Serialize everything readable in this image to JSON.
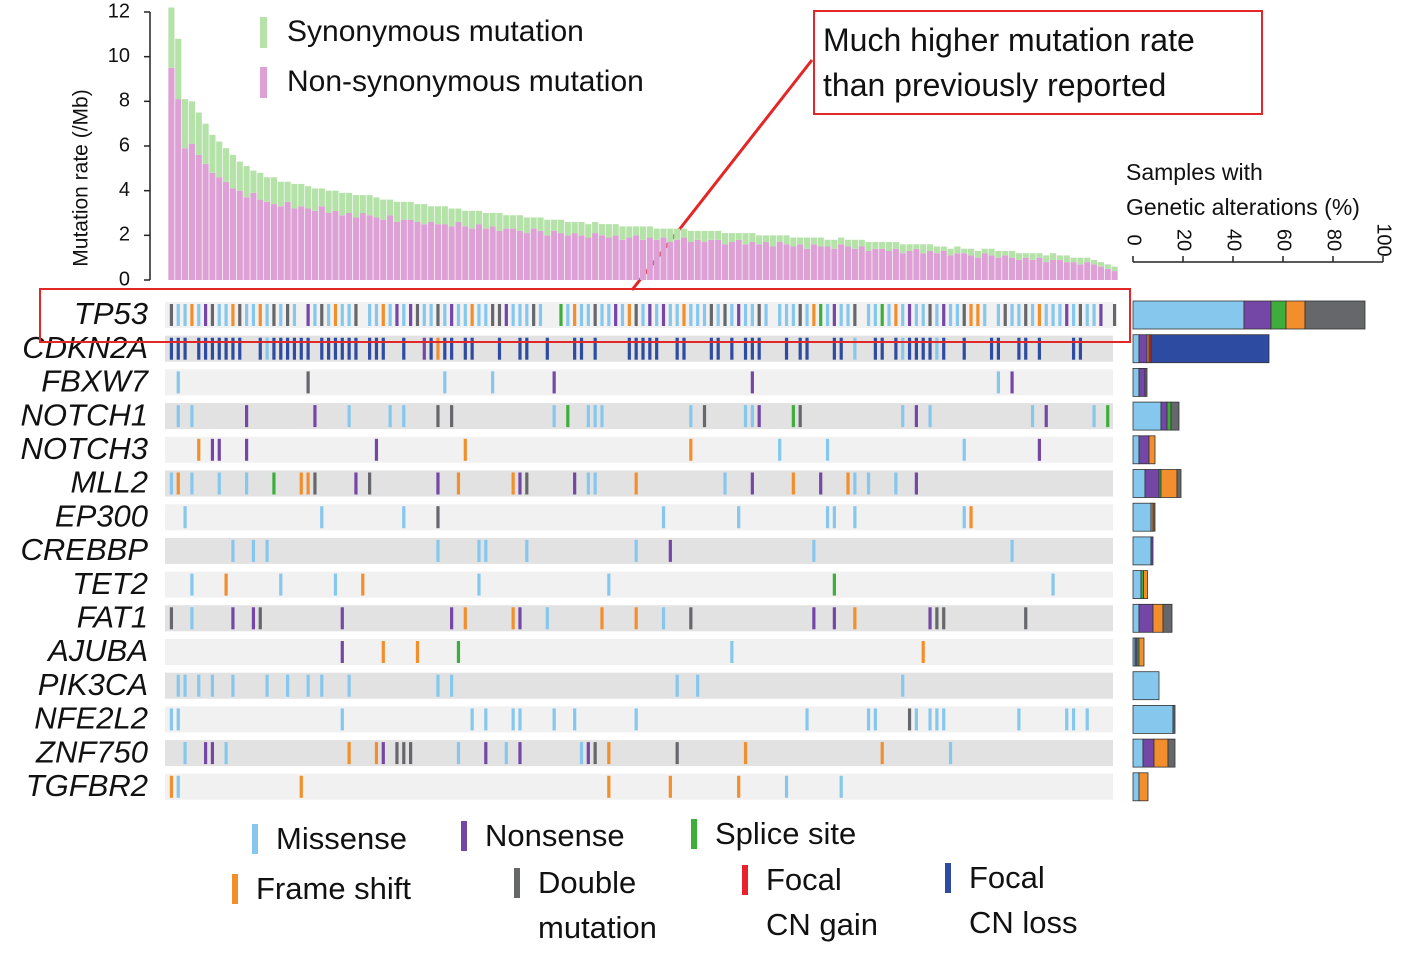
{
  "chart_data": [
    {
      "type": "bar",
      "ylabel": "Mutation rate   (/Mb)",
      "ylim": [
        0,
        12
      ],
      "yticks": [
        0,
        2,
        4,
        6,
        8,
        10,
        12
      ],
      "annotation": "Much higher mutation rate\nthan previously reported",
      "series": [
        {
          "name": "Synonymous mutation",
          "color": "#b5e2a8",
          "values": [
            2.7,
            2.7,
            2.2,
            1.9,
            1.9,
            1.8,
            1.7,
            1.6,
            1.5,
            1.5,
            1.3,
            1.4,
            1.0,
            1.2,
            1.1,
            1.2,
            1.1,
            0.9,
            1.1,
            1.0,
            1.0,
            1.0,
            0.8,
            1.0,
            0.9,
            1.0,
            0.9,
            1.0,
            0.8,
            0.9,
            0.9,
            0.9,
            0.7,
            0.9,
            0.8,
            0.8,
            0.8,
            0.9,
            0.7,
            0.8,
            0.8,
            0.8,
            0.6,
            0.7,
            0.8,
            0.6,
            0.7,
            0.6,
            0.8,
            0.6,
            0.6,
            0.7,
            0.7,
            0.5,
            0.6,
            0.7,
            0.5,
            0.6,
            0.6,
            0.5,
            0.6,
            0.6,
            0.5,
            0.5,
            0.6,
            0.5,
            0.6,
            0.5,
            0.4,
            0.6,
            0.5,
            0.5,
            0.4,
            0.6,
            0.5,
            0.4,
            0.5,
            0.4,
            0.5,
            0.4,
            0.4,
            0.5,
            0.4,
            0.3,
            0.5,
            0.4,
            0.4,
            0.3,
            0.5,
            0.3,
            0.4,
            0.4,
            0.3,
            0.5,
            0.3,
            0.4,
            0.3,
            0.4,
            0.3,
            0.3,
            0.4,
            0.3,
            0.4,
            0.3,
            0.3,
            0.4,
            0.3,
            0.4,
            0.3,
            0.2,
            0.4,
            0.3,
            0.3,
            0.2,
            0.3,
            0.3,
            0.2,
            0.3,
            0.3,
            0.2,
            0.3,
            0.3,
            0.2,
            0.3,
            0.3,
            0.2,
            0.3,
            0.2,
            0.3,
            0.3,
            0.2,
            0.3,
            0.2,
            0.3,
            0.2,
            0.2,
            0.2,
            0.2,
            0.2
          ]
        },
        {
          "name": "Non-synonymous mutation",
          "color": "#dda1d6",
          "values": [
            9.5,
            8.1,
            5.9,
            6.1,
            5.6,
            5.2,
            4.8,
            4.6,
            4.4,
            4.1,
            4.0,
            3.7,
            3.9,
            3.6,
            3.5,
            3.4,
            3.3,
            3.5,
            3.2,
            3.3,
            3.2,
            3.1,
            3.3,
            3.0,
            3.1,
            2.9,
            3.0,
            2.8,
            3.0,
            2.9,
            2.8,
            2.7,
            2.9,
            2.6,
            2.7,
            2.7,
            2.6,
            2.5,
            2.6,
            2.5,
            2.5,
            2.4,
            2.6,
            2.4,
            2.3,
            2.5,
            2.3,
            2.4,
            2.2,
            2.3,
            2.3,
            2.2,
            2.1,
            2.3,
            2.2,
            2.0,
            2.2,
            2.1,
            2.0,
            2.1,
            2.0,
            1.9,
            2.1,
            2.0,
            1.9,
            2.0,
            1.8,
            1.9,
            2.0,
            1.8,
            1.9,
            1.8,
            1.9,
            1.7,
            1.8,
            1.9,
            1.7,
            1.8,
            1.7,
            1.8,
            1.8,
            1.6,
            1.7,
            1.8,
            1.6,
            1.7,
            1.6,
            1.7,
            1.5,
            1.7,
            1.6,
            1.5,
            1.6,
            1.4,
            1.6,
            1.5,
            1.5,
            1.4,
            1.6,
            1.5,
            1.4,
            1.5,
            1.3,
            1.4,
            1.4,
            1.3,
            1.4,
            1.2,
            1.3,
            1.4,
            1.2,
            1.3,
            1.2,
            1.3,
            1.1,
            1.2,
            1.2,
            1.1,
            1.0,
            1.2,
            1.1,
            1.0,
            1.1,
            1.0,
            0.9,
            1.0,
            0.9,
            1.0,
            0.8,
            0.9,
            0.9,
            0.8,
            0.8,
            0.7,
            0.8,
            0.7,
            0.6,
            0.5,
            0.4
          ]
        }
      ]
    },
    {
      "type": "oncoprint",
      "categories": [
        "TP53",
        "CDKN2A",
        "FBXW7",
        "NOTCH1",
        "NOTCH3",
        "MLL2",
        "EP300",
        "CREBBP",
        "TET2",
        "FAT1",
        "AJUBA",
        "PIK3CA",
        "NFE2L2",
        "ZNF750",
        "TGFBR2"
      ],
      "alterations": [
        [
          [
            1,
            2,
            4,
            7,
            8,
            11,
            12,
            14,
            16,
            18,
            21,
            23,
            25,
            26,
            29,
            30,
            32,
            34,
            37,
            38,
            40,
            42,
            43,
            45,
            46,
            50,
            51,
            52,
            54,
            58,
            60,
            61,
            63,
            64,
            66,
            69,
            71,
            73,
            74,
            76,
            77,
            78,
            80,
            82,
            84,
            85,
            87,
            89,
            90,
            91,
            93,
            96,
            98,
            99,
            102,
            103,
            105,
            107,
            109,
            110,
            112,
            114,
            115,
            119,
            121,
            123,
            124,
            126,
            128,
            129,
            130,
            132,
            134,
            135
          ],
          [
            5,
            20,
            33,
            35,
            41,
            49,
            65,
            70,
            72,
            83,
            97,
            108,
            113,
            131,
            136
          ],
          [
            57,
            95,
            104
          ],
          [
            3,
            9,
            13,
            24,
            31,
            44,
            59,
            67,
            75,
            94,
            106,
            117,
            118,
            127
          ],
          [
            0,
            6,
            10,
            15,
            17,
            22,
            27,
            36,
            39,
            47,
            48,
            53,
            62,
            68,
            79,
            81,
            86,
            92,
            100,
            111,
            116,
            122,
            125,
            133,
            138
          ],
          [],
          []
        ],
        [
          [
            14,
            100,
            107,
            112
          ],
          [
            37
          ],
          [],
          [
            39
          ],
          [],
          [],
          [
            0,
            1,
            2,
            4,
            5,
            6,
            7,
            8,
            9,
            10,
            13,
            15,
            16,
            17,
            18,
            19,
            20,
            22,
            23,
            24,
            25,
            26,
            27,
            29,
            30,
            31,
            34,
            38,
            40,
            41,
            43,
            44,
            48,
            51,
            52,
            55,
            59,
            60,
            62,
            67,
            68,
            69,
            70,
            71,
            74,
            75,
            79,
            80,
            82,
            84,
            85,
            86,
            90,
            92,
            93,
            97,
            98,
            103,
            104,
            106,
            108,
            109,
            110,
            111,
            113,
            116,
            120,
            121,
            124,
            125,
            127,
            132,
            133
          ]
        ],
        [
          [
            1,
            40,
            47,
            121
          ],
          [
            56,
            85,
            123
          ],
          [],
          [],
          [
            20
          ],
          [],
          []
        ],
        [
          [
            1,
            3,
            26,
            32,
            34,
            56,
            61,
            62,
            63,
            76,
            84,
            85,
            107,
            111,
            126,
            135
          ],
          [
            11,
            21,
            86,
            109,
            128
          ],
          [
            58,
            91,
            137
          ],
          [],
          [
            39,
            41,
            78,
            92
          ],
          [],
          []
        ],
        [
          [
            89,
            96,
            116
          ],
          [
            6,
            7,
            11,
            30,
            127
          ],
          [],
          [
            4,
            43,
            76
          ],
          [],
          [],
          []
        ],
        [
          [
            0,
            3,
            7,
            11,
            61,
            62,
            81,
            100,
            102,
            106
          ],
          [
            27,
            39,
            51,
            59,
            85,
            95,
            109
          ],
          [
            15
          ],
          [
            1,
            19,
            20,
            42,
            50,
            68,
            91,
            99
          ],
          [
            21,
            29,
            52
          ],
          [],
          []
        ],
        [
          [
            2,
            22,
            34,
            72,
            83,
            96,
            97,
            100,
            116
          ],
          [],
          [],
          [
            117
          ],
          [
            39
          ],
          [],
          []
        ],
        [
          [
            9,
            12,
            14,
            39,
            45,
            46,
            52,
            68,
            94,
            123
          ],
          [
            73
          ],
          [],
          [],
          [],
          [],
          []
        ],
        [
          [
            3,
            16,
            24,
            45,
            64,
            129
          ],
          [],
          [
            97
          ],
          [
            8,
            28
          ],
          [],
          [],
          []
        ],
        [
          [
            3,
            55,
            72
          ],
          [
            9,
            12,
            25,
            41,
            51,
            94,
            97,
            111
          ],
          [],
          [
            43,
            50,
            63,
            68,
            100
          ],
          [
            0,
            13,
            76,
            112,
            113,
            125
          ],
          [],
          []
        ],
        [
          [
            82
          ],
          [
            25
          ],
          [
            42
          ],
          [
            31,
            36,
            110
          ],
          [],
          [],
          []
        ],
        [
          [
            1,
            2,
            4,
            6,
            9,
            14,
            17,
            20,
            22,
            26,
            39,
            41,
            74,
            77,
            107
          ],
          [],
          [],
          [],
          [],
          [],
          []
        ],
        [
          [
            0,
            1,
            25,
            44,
            46,
            50,
            51,
            56,
            59,
            68,
            93,
            102,
            103,
            109,
            111,
            112,
            113,
            124,
            131,
            132,
            134
          ],
          [],
          [],
          [],
          [
            108
          ],
          [],
          []
        ],
        [
          [
            2,
            8,
            42,
            49,
            60,
            114
          ],
          [
            5,
            6,
            31,
            46,
            51,
            61
          ],
          [],
          [
            26,
            30,
            64,
            84,
            104
          ],
          [
            33,
            34,
            35,
            62,
            74
          ],
          [],
          []
        ],
        [
          [
            1,
            90,
            98
          ],
          [],
          [],
          [
            0,
            19,
            64,
            73,
            83
          ],
          [],
          [],
          []
        ]
      ]
    },
    {
      "type": "hbar",
      "title": "Samples with\nGenetic alterations (%)",
      "xlim": [
        0,
        100
      ],
      "xticks": [
        0,
        20,
        40,
        60,
        80,
        100
      ],
      "series": [
        {
          "name": "Missense",
          "color": "#86c7ee",
          "values": [
            44.4,
            2.4,
            2.4,
            11.2,
            2.4,
            4.8,
            7.2,
            7.2,
            3.2,
            2.4,
            0.8,
            10.4,
            16,
            4,
            2.4
          ]
        },
        {
          "name": "Nonsense",
          "color": "#7446a5",
          "values": [
            10.8,
            3.2,
            2.4,
            2.4,
            4,
            5.6,
            0,
            0.8,
            0,
            5.6,
            0.8,
            0,
            0,
            4.4,
            0
          ]
        },
        {
          "name": "Splice site",
          "color": "#3eae3a",
          "values": [
            6,
            0,
            0,
            1.6,
            0,
            0.8,
            0,
            0,
            1,
            0,
            0.8,
            0,
            0,
            0,
            0
          ]
        },
        {
          "name": "Frame shift",
          "color": "#f28e2b",
          "values": [
            7.6,
            0.8,
            0,
            0,
            2.4,
            6.4,
            0.8,
            0,
            1.6,
            4,
            2,
            0,
            0,
            5.6,
            3.6
          ]
        },
        {
          "name": "Double\nmutation",
          "color": "#66676b",
          "values": [
            24,
            0,
            0.8,
            3.2,
            0,
            1.6,
            0.8,
            0,
            0,
            3.6,
            0,
            0,
            0.8,
            2.8,
            0
          ]
        },
        {
          "name": "Focal\nCN gain",
          "color": "#e8212a",
          "values": [
            0,
            0.8,
            0,
            0,
            0,
            0,
            0,
            0,
            0,
            0,
            0,
            0,
            0,
            0,
            0
          ]
        },
        {
          "name": "Focal\nCN loss",
          "color": "#2d4ba0",
          "values": [
            0,
            47.2,
            0,
            0,
            0,
            0,
            0,
            0,
            0,
            0,
            0,
            0,
            0,
            0,
            0
          ]
        }
      ]
    }
  ]
}
